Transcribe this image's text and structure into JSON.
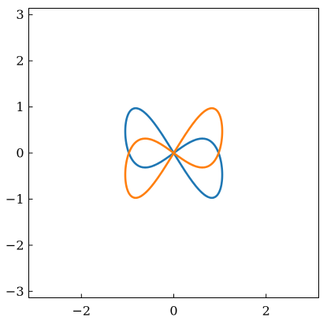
{
  "chart_data": {
    "type": "line",
    "title": "",
    "xlabel": "",
    "ylabel": "",
    "xlim": [
      -3.14,
      3.14
    ],
    "ylim": [
      -3.14,
      3.14
    ],
    "xticks": [
      -2,
      0,
      2
    ],
    "yticks": [
      -3,
      -2,
      -1,
      0,
      1,
      2,
      3
    ],
    "xtick_labels": [
      "−2",
      "0",
      "2"
    ],
    "ytick_labels": [
      "−3",
      "−2",
      "−1",
      "0",
      "1",
      "2",
      "3"
    ],
    "grid": false,
    "legend": "none",
    "curve": "lemniscate-style four-petal loops, 0 <= t <= 2*pi",
    "series": [
      {
        "color": "#1f77b4",
        "x": [
          1.0,
          0.92,
          0.71,
          0.38,
          0.0,
          -0.38,
          -0.71,
          -0.92,
          -1.0,
          -0.92,
          -0.71,
          -0.38,
          0.0,
          0.38,
          0.71,
          0.92,
          1.0
        ],
        "y": [
          -0.75,
          -1.05,
          -1.08,
          -0.72,
          -0.0,
          0.72,
          1.08,
          1.05,
          0.75,
          0.35,
          0.0,
          -0.3,
          -0.0,
          0.3,
          0.0,
          -0.35,
          -0.75
        ]
      },
      {
        "color": "#ff7f0e",
        "x": [
          1.0,
          0.92,
          0.71,
          0.38,
          0.0,
          -0.38,
          -0.71,
          -0.92,
          -1.0,
          -0.92,
          -0.71,
          -0.38,
          0.0,
          0.38,
          0.71,
          0.92,
          1.0
        ],
        "y": [
          0.75,
          1.05,
          1.08,
          0.72,
          0.0,
          -0.72,
          -1.08,
          -1.05,
          -0.75,
          -0.35,
          0.0,
          0.3,
          0.0,
          -0.3,
          0.0,
          0.35,
          0.75
        ]
      }
    ]
  }
}
